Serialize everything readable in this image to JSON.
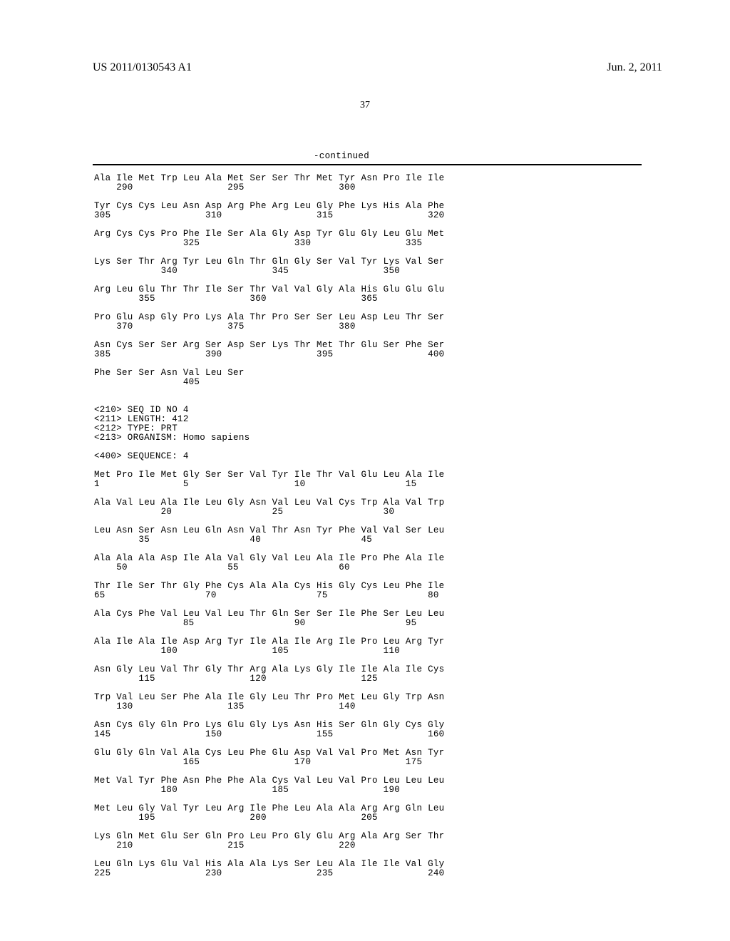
{
  "header": {
    "pub_number": "US 2011/0130543 A1",
    "pub_date": "Jun. 2, 2011",
    "page_number": "37",
    "continued_label": "-continued"
  },
  "sequence_body": "Ala Ile Met Trp Leu Ala Met Ser Ser Thr Met Tyr Asn Pro Ile Ile\n    290                 295                 300\n\nTyr Cys Cys Leu Asn Asp Arg Phe Arg Leu Gly Phe Lys His Ala Phe\n305                 310                 315                 320\n\nArg Cys Cys Pro Phe Ile Ser Ala Gly Asp Tyr Glu Gly Leu Glu Met\n                325                 330                 335\n\nLys Ser Thr Arg Tyr Leu Gln Thr Gln Gly Ser Val Tyr Lys Val Ser\n            340                 345                 350\n\nArg Leu Glu Thr Thr Ile Ser Thr Val Val Gly Ala His Glu Glu Glu\n        355                 360                 365\n\nPro Glu Asp Gly Pro Lys Ala Thr Pro Ser Ser Leu Asp Leu Thr Ser\n    370                 375                 380\n\nAsn Cys Ser Ser Arg Ser Asp Ser Lys Thr Met Thr Glu Ser Phe Ser\n385                 390                 395                 400\n\nPhe Ser Ser Asn Val Leu Ser\n                405\n\n\n<210> SEQ ID NO 4\n<211> LENGTH: 412\n<212> TYPE: PRT\n<213> ORGANISM: Homo sapiens\n\n<400> SEQUENCE: 4\n\nMet Pro Ile Met Gly Ser Ser Val Tyr Ile Thr Val Glu Leu Ala Ile\n1               5                   10                  15\n\nAla Val Leu Ala Ile Leu Gly Asn Val Leu Val Cys Trp Ala Val Trp\n            20                  25                  30\n\nLeu Asn Ser Asn Leu Gln Asn Val Thr Asn Tyr Phe Val Val Ser Leu\n        35                  40                  45\n\nAla Ala Ala Asp Ile Ala Val Gly Val Leu Ala Ile Pro Phe Ala Ile\n    50                  55                  60\n\nThr Ile Ser Thr Gly Phe Cys Ala Ala Cys His Gly Cys Leu Phe Ile\n65                  70                  75                  80\n\nAla Cys Phe Val Leu Val Leu Thr Gln Ser Ser Ile Phe Ser Leu Leu\n                85                  90                  95\n\nAla Ile Ala Ile Asp Arg Tyr Ile Ala Ile Arg Ile Pro Leu Arg Tyr\n            100                 105                 110\n\nAsn Gly Leu Val Thr Gly Thr Arg Ala Lys Gly Ile Ile Ala Ile Cys\n        115                 120                 125\n\nTrp Val Leu Ser Phe Ala Ile Gly Leu Thr Pro Met Leu Gly Trp Asn\n    130                 135                 140\n\nAsn Cys Gly Gln Pro Lys Glu Gly Lys Asn His Ser Gln Gly Cys Gly\n145                 150                 155                 160\n\nGlu Gly Gln Val Ala Cys Leu Phe Glu Asp Val Val Pro Met Asn Tyr\n                165                 170                 175\n\nMet Val Tyr Phe Asn Phe Phe Ala Cys Val Leu Val Pro Leu Leu Leu\n            180                 185                 190\n\nMet Leu Gly Val Tyr Leu Arg Ile Phe Leu Ala Ala Arg Arg Gln Leu\n        195                 200                 205\n\nLys Gln Met Glu Ser Gln Pro Leu Pro Gly Glu Arg Ala Arg Ser Thr\n    210                 215                 220\n\nLeu Gln Lys Glu Val His Ala Ala Lys Ser Leu Ala Ile Ile Val Gly\n225                 230                 235                 240"
}
